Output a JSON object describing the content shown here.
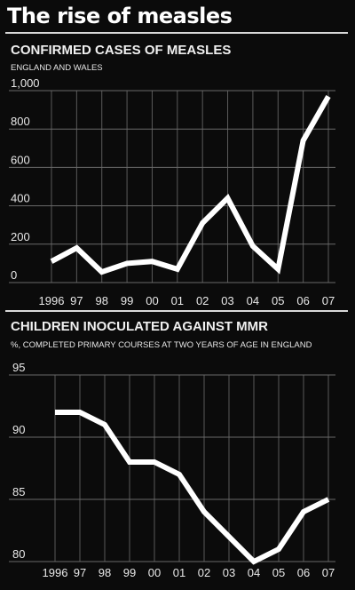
{
  "headline": "The rise of measles",
  "chart_data": [
    {
      "type": "line",
      "title": "CONFIRMED CASES OF MEASLES",
      "subtitle": "ENGLAND AND WALES",
      "x": [
        "1996",
        "97",
        "98",
        "99",
        "00",
        "01",
        "02",
        "03",
        "04",
        "05",
        "06",
        "07"
      ],
      "y_ticks": [
        "0",
        "200",
        "400",
        "600",
        "800",
        "1,000"
      ],
      "y_tick_values": [
        0,
        200,
        400,
        600,
        800,
        1000
      ],
      "ylim": [
        0,
        1000
      ],
      "values": [
        110,
        180,
        55,
        100,
        110,
        70,
        310,
        440,
        190,
        70,
        740,
        970
      ],
      "grid": true,
      "line_color": "#ffffff"
    },
    {
      "type": "line",
      "title": "CHILDREN INOCULATED AGAINST MMR",
      "subtitle": "%, COMPLETED PRIMARY COURSES AT TWO YEARS OF AGE IN ENGLAND",
      "x": [
        "1996",
        "97",
        "98",
        "99",
        "00",
        "01",
        "02",
        "03",
        "04",
        "05",
        "06",
        "07"
      ],
      "y_ticks": [
        "80",
        "85",
        "90",
        "95"
      ],
      "y_tick_values": [
        80,
        85,
        90,
        95
      ],
      "ylim": [
        80,
        95
      ],
      "values": [
        92,
        92,
        91,
        88,
        88,
        87,
        84,
        82,
        80,
        81,
        84,
        85
      ],
      "grid": true,
      "line_color": "#ffffff"
    }
  ]
}
